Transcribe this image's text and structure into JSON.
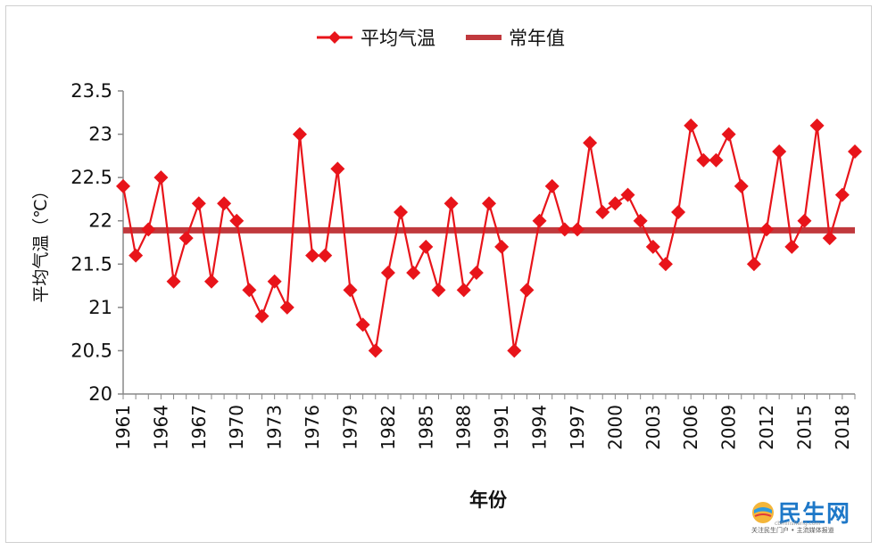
{
  "chart_data": {
    "type": "line",
    "title": "",
    "xlabel": "年份",
    "ylabel": "平均气温（℃）",
    "ylim": [
      20,
      23.5
    ],
    "yticks": [
      "20",
      "20.5",
      "21",
      "21.5",
      "22",
      "22.5",
      "23",
      "23.5"
    ],
    "x_tick_labels": [
      "1961",
      "1964",
      "1967",
      "1970",
      "1973",
      "1976",
      "1979",
      "1982",
      "1985",
      "1988",
      "1991",
      "1994",
      "1997",
      "2000",
      "2003",
      "2006",
      "2009",
      "2012",
      "2015",
      "2018"
    ],
    "x": [
      1961,
      1962,
      1963,
      1964,
      1965,
      1966,
      1967,
      1968,
      1969,
      1970,
      1971,
      1972,
      1973,
      1974,
      1975,
      1976,
      1977,
      1978,
      1979,
      1980,
      1981,
      1982,
      1983,
      1984,
      1985,
      1986,
      1987,
      1988,
      1989,
      1990,
      1991,
      1992,
      1993,
      1994,
      1995,
      1996,
      1997,
      1998,
      1999,
      2000,
      2001,
      2002,
      2003,
      2004,
      2005,
      2006,
      2007,
      2008,
      2009,
      2010,
      2011,
      2012,
      2013,
      2014,
      2015,
      2016,
      2017,
      2018,
      2019
    ],
    "series": [
      {
        "name": "平均气温",
        "color": "#e8141a",
        "marker": "diamond",
        "values": [
          22.4,
          21.6,
          21.9,
          22.5,
          21.3,
          21.8,
          22.2,
          21.3,
          22.2,
          22.0,
          21.2,
          20.9,
          21.3,
          21.0,
          23.0,
          21.6,
          21.6,
          22.6,
          21.2,
          20.8,
          20.5,
          21.4,
          22.1,
          21.4,
          21.7,
          21.2,
          22.2,
          21.2,
          21.4,
          22.2,
          21.7,
          20.5,
          21.2,
          22.0,
          22.4,
          21.9,
          21.9,
          22.9,
          22.1,
          22.2,
          22.3,
          22.0,
          21.7,
          21.5,
          22.1,
          23.1,
          22.7,
          22.7,
          23.0,
          22.4,
          21.5,
          21.9,
          22.8,
          21.7,
          22.0,
          23.1,
          21.8,
          22.3,
          22.8
        ]
      },
      {
        "name": "常年值",
        "color": "#c0393d",
        "value": 21.89
      }
    ],
    "legend": "top-center",
    "grid": false
  },
  "watermark": {
    "text": "民生网",
    "url": "cbminsheng.com",
    "tagline": "关注民生门户 • 主流媒体报道"
  }
}
